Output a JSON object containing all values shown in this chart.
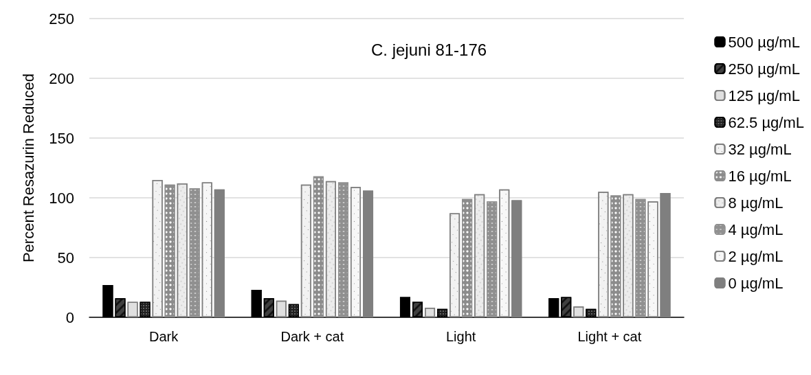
{
  "chart_data": {
    "type": "bar",
    "ylabel": "Percent Resazurin Reduced",
    "annotations": [
      "C. jejuni 81-176"
    ],
    "categories": [
      "Dark",
      "Dark + cat",
      "Light",
      "Light + cat"
    ],
    "series": [
      {
        "name": "500 µg/mL",
        "color": "#000000",
        "values": [
          27,
          23,
          17,
          16
        ]
      },
      {
        "name": "250 µg/mL",
        "color": "#404040",
        "values": [
          16,
          16,
          13,
          17
        ]
      },
      {
        "name": "125 µg/mL",
        "color": "#e0e0e0",
        "values": [
          13,
          14,
          8,
          9
        ]
      },
      {
        "name": "62.5 µg/mL",
        "color": "#202020",
        "values": [
          13,
          11,
          7,
          7
        ]
      },
      {
        "name": "32 µg/mL",
        "color": "#f2f2f2",
        "values": [
          115,
          111,
          87,
          105
        ]
      },
      {
        "name": "16 µg/mL",
        "color": "#8c8c8c",
        "values": [
          111,
          118,
          99,
          102
        ]
      },
      {
        "name": "8 µg/mL",
        "color": "#ececec",
        "values": [
          112,
          114,
          103,
          103
        ]
      },
      {
        "name": "4 µg/mL",
        "color": "#909090",
        "values": [
          108,
          113,
          97,
          99
        ]
      },
      {
        "name": "2 µg/mL",
        "color": "#f7f7f7",
        "values": [
          113,
          109,
          107,
          97
        ]
      },
      {
        "name": "0 µg/mL",
        "color": "#7f7f7f",
        "values": [
          107,
          106,
          98,
          104
        ]
      }
    ],
    "ylim": [
      0,
      250
    ],
    "yticks": [
      0,
      50,
      100,
      150,
      200,
      250
    ],
    "grid": "y",
    "legend": "right"
  }
}
